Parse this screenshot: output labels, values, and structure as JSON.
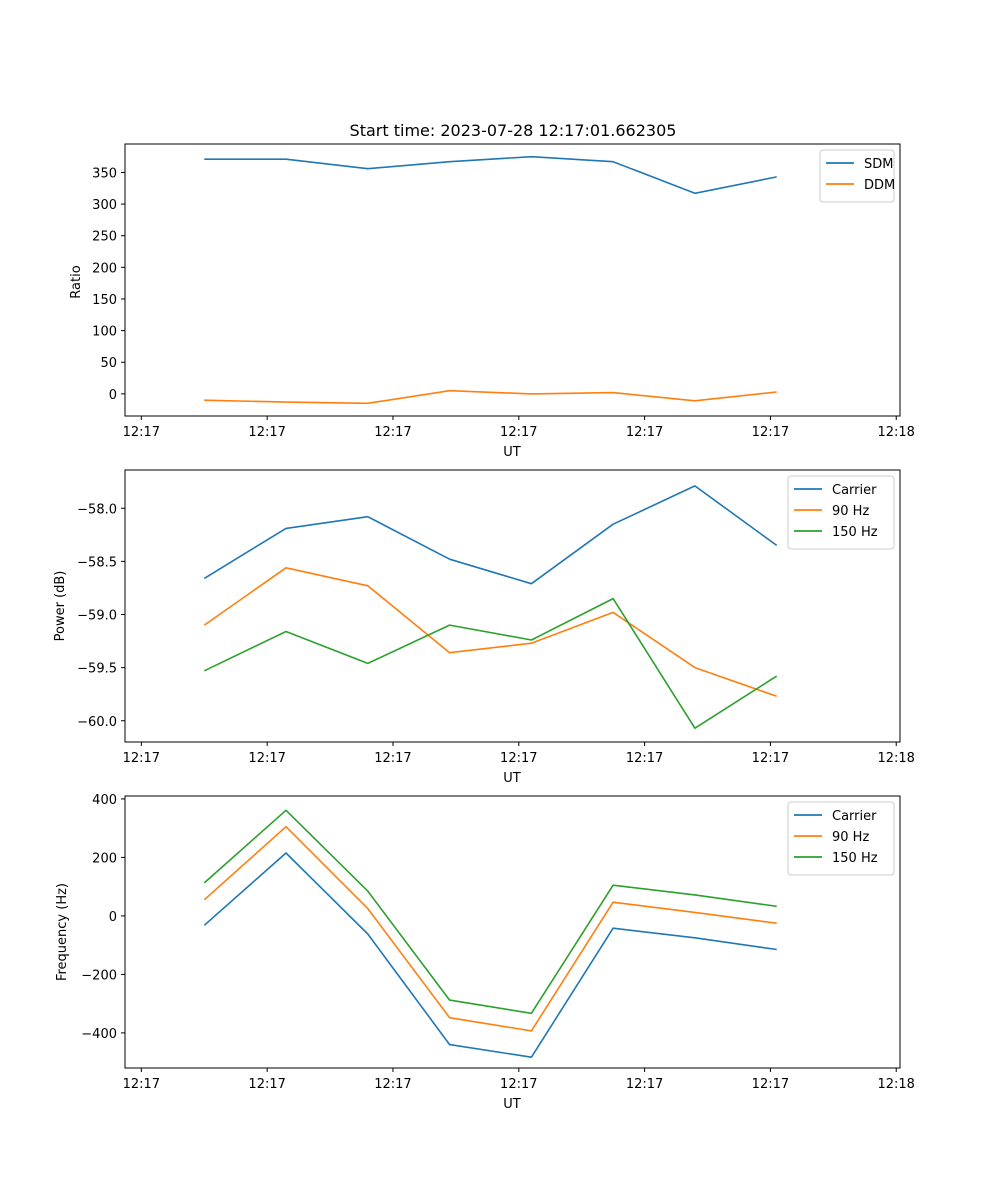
{
  "chart_data": [
    {
      "type": "line",
      "title": "Start time: 2023-07-28 12:17:01.662305",
      "xlabel": "UT",
      "ylabel": "Ratio",
      "x_ticks": [
        "12:17",
        "12:17",
        "12:17",
        "12:17",
        "12:17",
        "12:17",
        "12:18"
      ],
      "y_ticks": [
        "0",
        "50",
        "100",
        "150",
        "200",
        "250",
        "300",
        "350"
      ],
      "ylim": [
        -35,
        395
      ],
      "x": [
        0.5,
        1.15,
        1.8,
        2.45,
        3.1,
        3.75,
        4.4,
        5.05
      ],
      "xlim": [
        -0.13,
        6.03
      ],
      "legend_position": "top-right",
      "series": [
        {
          "name": "SDM",
          "color": "#1f77b4",
          "values": [
            371,
            371,
            356,
            367,
            375,
            367,
            317,
            343
          ]
        },
        {
          "name": "DDM",
          "color": "#ff7f0e",
          "values": [
            -10,
            -13,
            -15,
            5,
            0,
            2,
            -11,
            3
          ]
        }
      ]
    },
    {
      "type": "line",
      "title": "",
      "xlabel": "UT",
      "ylabel": "Power (dB)",
      "x_ticks": [
        "12:17",
        "12:17",
        "12:17",
        "12:17",
        "12:17",
        "12:17",
        "12:18"
      ],
      "y_ticks": [
        "−58.0",
        "−58.5",
        "−59.0",
        "−59.5",
        "−60.0"
      ],
      "ylim": [
        -60.2,
        -57.64
      ],
      "x": [
        0.5,
        1.15,
        1.8,
        2.45,
        3.1,
        3.75,
        4.4,
        5.05
      ],
      "xlim": [
        -0.13,
        6.03
      ],
      "legend_position": "top-right",
      "series": [
        {
          "name": "Carrier",
          "color": "#1f77b4",
          "values": [
            -58.66,
            -58.19,
            -58.08,
            -58.48,
            -58.71,
            -58.15,
            -57.79,
            -58.35
          ]
        },
        {
          "name": "90 Hz",
          "color": "#ff7f0e",
          "values": [
            -59.1,
            -58.56,
            -58.73,
            -59.36,
            -59.27,
            -58.98,
            -59.5,
            -59.77
          ]
        },
        {
          "name": "150 Hz",
          "color": "#2ca02c",
          "values": [
            -59.53,
            -59.16,
            -59.46,
            -59.1,
            -59.24,
            -58.85,
            -60.07,
            -59.58
          ]
        }
      ]
    },
    {
      "type": "line",
      "title": "",
      "xlabel": "UT",
      "ylabel": "Frequency (Hz)",
      "x_ticks": [
        "12:17",
        "12:17",
        "12:17",
        "12:17",
        "12:17",
        "12:17",
        "12:18"
      ],
      "y_ticks": [
        "−400",
        "−200",
        "0",
        "200",
        "400"
      ],
      "ylim": [
        -520,
        410
      ],
      "x": [
        0.5,
        1.15,
        1.8,
        2.45,
        3.1,
        3.75,
        4.4,
        5.05
      ],
      "xlim": [
        -0.13,
        6.03
      ],
      "legend_position": "top-right",
      "series": [
        {
          "name": "Carrier",
          "color": "#1f77b4",
          "values": [
            -32,
            215,
            -62,
            -440,
            -483,
            -42,
            -75,
            -115
          ]
        },
        {
          "name": "90 Hz",
          "color": "#ff7f0e",
          "values": [
            55,
            305,
            25,
            -348,
            -393,
            47,
            12,
            -25
          ]
        },
        {
          "name": "150 Hz",
          "color": "#2ca02c",
          "values": [
            113,
            361,
            85,
            -288,
            -333,
            105,
            72,
            33
          ]
        }
      ]
    }
  ]
}
